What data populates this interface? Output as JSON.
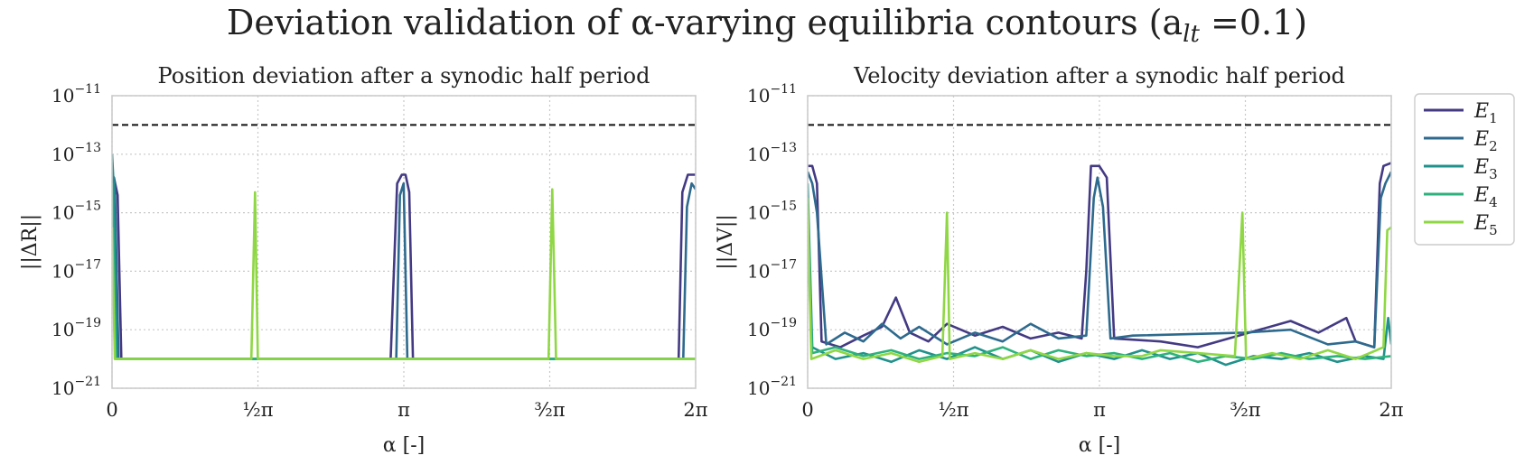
{
  "figure": {
    "title": "Deviation validation of α-varying equilibria contours (a",
    "title_sub": "lt",
    "title_tail": " =0.1)"
  },
  "colors": {
    "E1": "#433a83",
    "E2": "#2e6a8e",
    "E3": "#21918c",
    "E4": "#2db27d",
    "E5": "#8fd744",
    "threshold": "#111111",
    "grid": "#c8c8c8",
    "frame": "#cccccc"
  },
  "chart_data": [
    {
      "type": "line",
      "title": "Position deviation after a synodic half period",
      "xlabel": "α [-]",
      "ylabel": "||ΔR||",
      "xlim": [
        0,
        6.2832
      ],
      "y_scale": "log",
      "ylim_exp": [
        -21,
        -11
      ],
      "yticks": [
        {
          "base": "10",
          "exp": "−11",
          "v": -11
        },
        {
          "base": "10",
          "exp": "−13",
          "v": -13
        },
        {
          "base": "10",
          "exp": "−15",
          "v": -15
        },
        {
          "base": "10",
          "exp": "−17",
          "v": -17
        },
        {
          "base": "10",
          "exp": "−19",
          "v": -19
        },
        {
          "base": "10",
          "exp": "−21",
          "v": -21
        }
      ],
      "xticks": [
        {
          "v": 0,
          "label": "0"
        },
        {
          "v": 1.5708,
          "label": "½π"
        },
        {
          "v": 3.1416,
          "label": "π"
        },
        {
          "v": 4.7124,
          "label": "³⁄₂π"
        },
        {
          "v": 6.2832,
          "label": "2π"
        }
      ],
      "threshold_log10": -12,
      "grid": true,
      "series": [
        {
          "name": "E1",
          "log_y": [
            [
              0,
              -13.7
            ],
            [
              0.02,
              -13.8
            ],
            [
              0.06,
              -14.4
            ],
            [
              0.1,
              -20.0
            ],
            [
              0.12,
              -20.0
            ],
            [
              3.0,
              -20.0
            ],
            [
              3.07,
              -14.0
            ],
            [
              3.12,
              -13.7
            ],
            [
              3.16,
              -13.7
            ],
            [
              3.2,
              -14.3
            ],
            [
              3.24,
              -20.0
            ],
            [
              3.35,
              -20.0
            ],
            [
              6.1,
              -20.0
            ],
            [
              6.14,
              -14.3
            ],
            [
              6.2,
              -13.7
            ],
            [
              6.2832,
              -13.7
            ]
          ]
        },
        {
          "name": "E2",
          "log_y": [
            [
              0,
              -13.6
            ],
            [
              0.03,
              -14.0
            ],
            [
              0.07,
              -20.0
            ],
            [
              3.06,
              -20.0
            ],
            [
              3.1,
              -14.4
            ],
            [
              3.14,
              -14.0
            ],
            [
              3.18,
              -20.0
            ],
            [
              6.15,
              -20.0
            ],
            [
              6.19,
              -14.8
            ],
            [
              6.24,
              -14.0
            ],
            [
              6.2832,
              -14.2
            ]
          ]
        },
        {
          "name": "E3",
          "log_y": [
            [
              0,
              -13.0
            ],
            [
              0.02,
              -14.2
            ],
            [
              0.05,
              -20.0
            ],
            [
              6.2832,
              -20.0
            ]
          ]
        },
        {
          "name": "E4",
          "log_y": [
            [
              0,
              -14.0
            ],
            [
              0.04,
              -20.0
            ],
            [
              6.2832,
              -20.0
            ]
          ]
        },
        {
          "name": "E5",
          "log_y": [
            [
              0,
              -15.5
            ],
            [
              0.03,
              -20.0
            ],
            [
              1.5,
              -20.0
            ],
            [
              1.54,
              -14.3
            ],
            [
              1.57,
              -20.0
            ],
            [
              4.7,
              -20.0
            ],
            [
              4.74,
              -14.2
            ],
            [
              4.78,
              -20.0
            ],
            [
              6.2832,
              -20.0
            ]
          ]
        }
      ]
    },
    {
      "type": "line",
      "title": "Velocity deviation after a synodic half period",
      "xlabel": "α [-]",
      "ylabel": "||ΔV||",
      "xlim": [
        0,
        6.2832
      ],
      "y_scale": "log",
      "ylim_exp": [
        -21,
        -11
      ],
      "yticks": [
        {
          "base": "10",
          "exp": "−11",
          "v": -11
        },
        {
          "base": "10",
          "exp": "−13",
          "v": -13
        },
        {
          "base": "10",
          "exp": "−15",
          "v": -15
        },
        {
          "base": "10",
          "exp": "−17",
          "v": -17
        },
        {
          "base": "10",
          "exp": "−19",
          "v": -19
        },
        {
          "base": "10",
          "exp": "−21",
          "v": -21
        }
      ],
      "xticks": [
        {
          "v": 0,
          "label": "0"
        },
        {
          "v": 1.5708,
          "label": "½π"
        },
        {
          "v": 3.1416,
          "label": "π"
        },
        {
          "v": 4.7124,
          "label": "³⁄₂π"
        },
        {
          "v": 6.2832,
          "label": "2π"
        }
      ],
      "threshold_log10": -12,
      "grid": true,
      "legend": {
        "position": "outside-right",
        "entries": [
          {
            "key": "E1",
            "base": "E",
            "sub": "1"
          },
          {
            "key": "E2",
            "base": "E",
            "sub": "2"
          },
          {
            "key": "E3",
            "base": "E",
            "sub": "3"
          },
          {
            "key": "E4",
            "base": "E",
            "sub": "4"
          },
          {
            "key": "E5",
            "base": "E",
            "sub": "5"
          }
        ]
      },
      "series": [
        {
          "name": "E1",
          "log_y": [
            [
              0,
              -13.4
            ],
            [
              0.05,
              -13.4
            ],
            [
              0.1,
              -14.0
            ],
            [
              0.15,
              -19.4
            ],
            [
              0.35,
              -19.6
            ],
            [
              0.6,
              -19.2
            ],
            [
              0.8,
              -18.9
            ],
            [
              0.95,
              -17.9
            ],
            [
              1.1,
              -19.1
            ],
            [
              1.3,
              -19.4
            ],
            [
              1.5,
              -18.8
            ],
            [
              1.8,
              -19.2
            ],
            [
              2.1,
              -18.9
            ],
            [
              2.4,
              -19.3
            ],
            [
              2.7,
              -19.1
            ],
            [
              2.95,
              -19.3
            ],
            [
              3.0,
              -17.0
            ],
            [
              3.05,
              -13.4
            ],
            [
              3.14,
              -13.4
            ],
            [
              3.22,
              -13.8
            ],
            [
              3.3,
              -19.3
            ],
            [
              3.8,
              -19.4
            ],
            [
              4.2,
              -19.6
            ],
            [
              5.2,
              -18.7
            ],
            [
              5.5,
              -19.1
            ],
            [
              5.8,
              -18.6
            ],
            [
              5.9,
              -19.4
            ],
            [
              6.1,
              -19.6
            ],
            [
              6.16,
              -14.0
            ],
            [
              6.2,
              -13.4
            ],
            [
              6.2832,
              -13.3
            ]
          ]
        },
        {
          "name": "E2",
          "log_y": [
            [
              0,
              -13.6
            ],
            [
              0.05,
              -14.0
            ],
            [
              0.1,
              -15.0
            ],
            [
              0.2,
              -19.5
            ],
            [
              0.4,
              -19.1
            ],
            [
              0.6,
              -19.4
            ],
            [
              0.8,
              -18.8
            ],
            [
              1.0,
              -19.3
            ],
            [
              1.2,
              -18.9
            ],
            [
              1.5,
              -19.5
            ],
            [
              1.8,
              -19.1
            ],
            [
              2.1,
              -19.4
            ],
            [
              2.4,
              -18.8
            ],
            [
              2.7,
              -19.3
            ],
            [
              3.0,
              -19.2
            ],
            [
              3.08,
              -14.5
            ],
            [
              3.12,
              -13.8
            ],
            [
              3.18,
              -14.8
            ],
            [
              3.26,
              -19.3
            ],
            [
              3.5,
              -19.2
            ],
            [
              4.7,
              -19.1
            ],
            [
              5.2,
              -19.0
            ],
            [
              5.6,
              -19.5
            ],
            [
              5.9,
              -19.4
            ],
            [
              6.1,
              -19.6
            ],
            [
              6.17,
              -14.5
            ],
            [
              6.22,
              -14.0
            ],
            [
              6.2832,
              -13.6
            ]
          ]
        },
        {
          "name": "E3",
          "log_y": [
            [
              0,
              -14.0
            ],
            [
              0.05,
              -19.6
            ],
            [
              0.3,
              -20.0
            ],
            [
              0.6,
              -19.8
            ],
            [
              0.9,
              -20.1
            ],
            [
              1.2,
              -19.7
            ],
            [
              1.5,
              -20.0
            ],
            [
              1.8,
              -19.6
            ],
            [
              2.1,
              -20.0
            ],
            [
              2.4,
              -19.7
            ],
            [
              2.7,
              -20.1
            ],
            [
              3.0,
              -19.8
            ],
            [
              3.3,
              -20.0
            ],
            [
              3.6,
              -19.7
            ],
            [
              3.9,
              -20.0
            ],
            [
              4.2,
              -19.8
            ],
            [
              4.5,
              -20.2
            ],
            [
              4.8,
              -19.9
            ],
            [
              5.1,
              -20.0
            ],
            [
              5.4,
              -19.8
            ],
            [
              5.7,
              -20.1
            ],
            [
              6.0,
              -19.9
            ],
            [
              6.2,
              -20.0
            ],
            [
              6.25,
              -18.6
            ],
            [
              6.2832,
              -19.5
            ]
          ]
        },
        {
          "name": "E4",
          "log_y": [
            [
              0,
              -16.0
            ],
            [
              0.05,
              -19.8
            ],
            [
              0.3,
              -19.6
            ],
            [
              0.6,
              -19.9
            ],
            [
              0.9,
              -19.7
            ],
            [
              1.2,
              -20.0
            ],
            [
              1.5,
              -19.8
            ],
            [
              1.8,
              -19.9
            ],
            [
              2.1,
              -19.6
            ],
            [
              2.4,
              -20.0
            ],
            [
              2.7,
              -19.7
            ],
            [
              3.0,
              -19.9
            ],
            [
              3.3,
              -19.8
            ],
            [
              3.6,
              -20.0
            ],
            [
              3.9,
              -19.8
            ],
            [
              4.2,
              -20.1
            ],
            [
              4.5,
              -19.9
            ],
            [
              4.8,
              -20.0
            ],
            [
              5.1,
              -19.8
            ],
            [
              5.4,
              -20.0
            ],
            [
              5.7,
              -19.9
            ],
            [
              6.0,
              -20.0
            ],
            [
              6.2832,
              -19.9
            ]
          ]
        },
        {
          "name": "E5",
          "log_y": [
            [
              0,
              -14.5
            ],
            [
              0.04,
              -20.0
            ],
            [
              0.3,
              -19.7
            ],
            [
              0.6,
              -20.0
            ],
            [
              0.9,
              -19.8
            ],
            [
              1.2,
              -20.1
            ],
            [
              1.45,
              -19.9
            ],
            [
              1.5,
              -15.0
            ],
            [
              1.53,
              -20.0
            ],
            [
              1.8,
              -19.8
            ],
            [
              2.1,
              -20.0
            ],
            [
              2.4,
              -19.7
            ],
            [
              2.7,
              -20.0
            ],
            [
              3.0,
              -19.8
            ],
            [
              3.3,
              -19.9
            ],
            [
              3.6,
              -19.9
            ],
            [
              3.8,
              -19.7
            ],
            [
              4.2,
              -19.8
            ],
            [
              4.6,
              -19.9
            ],
            [
              4.68,
              -15.0
            ],
            [
              4.72,
              -20.0
            ],
            [
              5.0,
              -19.8
            ],
            [
              5.3,
              -20.0
            ],
            [
              5.6,
              -19.7
            ],
            [
              5.9,
              -20.0
            ],
            [
              6.2,
              -19.6
            ],
            [
              6.24,
              -15.6
            ],
            [
              6.2832,
              -15.5
            ]
          ]
        }
      ]
    }
  ]
}
